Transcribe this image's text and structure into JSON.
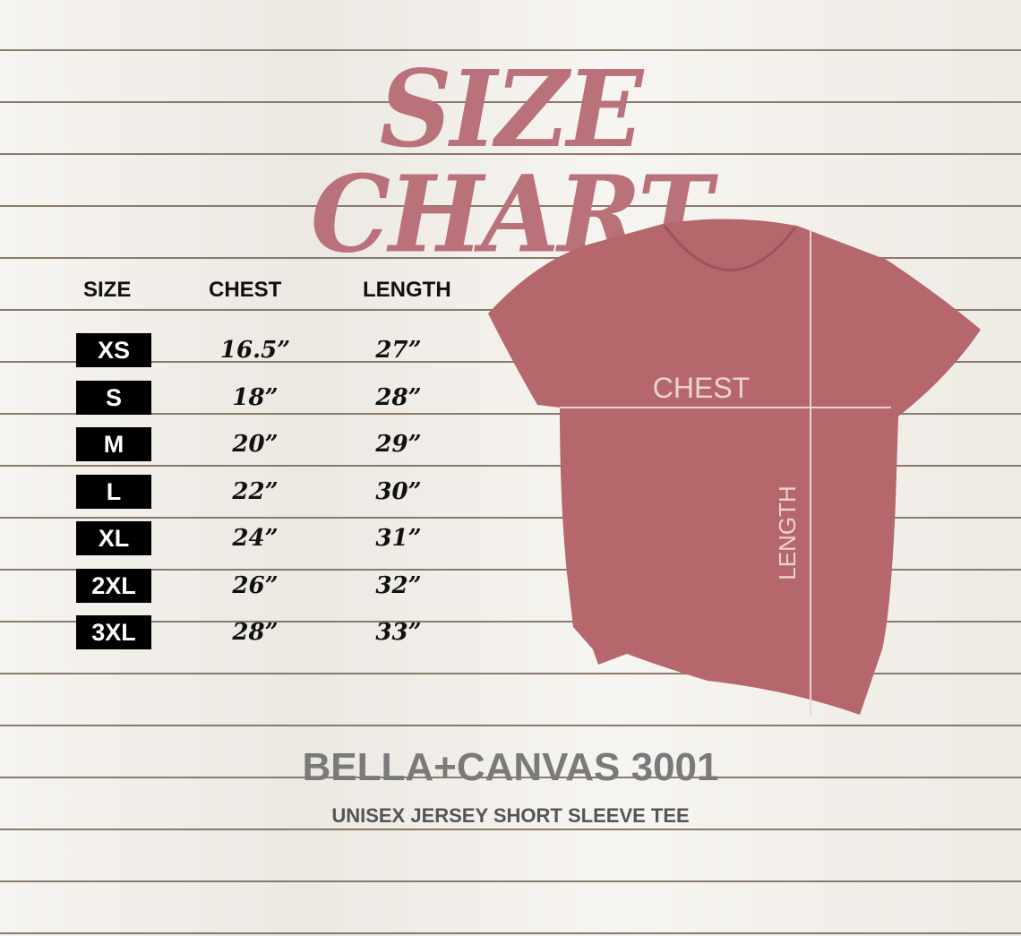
{
  "title": "SIZE CHART",
  "headers": {
    "size": "SIZE",
    "chest": "CHEST",
    "length": "LENGTH"
  },
  "rows": [
    {
      "size": "XS",
      "chest": "16.5”",
      "length": "27”"
    },
    {
      "size": "S",
      "chest": "18”",
      "length": "28”"
    },
    {
      "size": "M",
      "chest": "20”",
      "length": "29”"
    },
    {
      "size": "L",
      "chest": "22”",
      "length": "30”"
    },
    {
      "size": "XL",
      "chest": "24”",
      "length": "31”"
    },
    {
      "size": "2XL",
      "chest": "26”",
      "length": "32”"
    },
    {
      "size": "3XL",
      "chest": "28”",
      "length": "33”"
    }
  ],
  "diagram": {
    "chest_label": "CHEST",
    "length_label": "LENGTH",
    "shirt_color": "#b5676c"
  },
  "brand": "BELLA+CANVAS 3001",
  "subtitle": "UNISEX JERSEY SHORT SLEEVE TEE",
  "colors": {
    "title": "#b9727a",
    "badge": "#000000"
  }
}
